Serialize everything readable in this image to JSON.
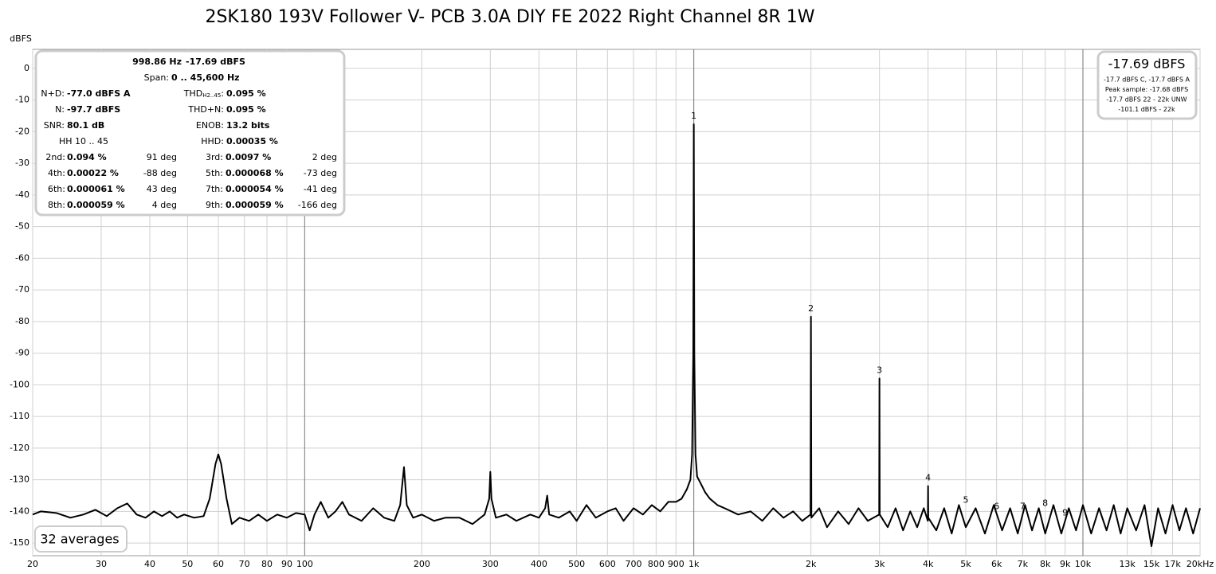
{
  "chart_data": {
    "type": "line",
    "title": "2SK180 193V Follower V- PCB 3.0A DIY FE 2022 Right Channel 8R 1W",
    "y_label": "dBFS",
    "log_x": true,
    "grid": true,
    "color": "#000000",
    "xlim": [
      20,
      20000
    ],
    "ylim": [
      -154,
      6
    ],
    "yticks": [
      0,
      -10,
      -20,
      -30,
      -40,
      -50,
      -60,
      -70,
      -80,
      -90,
      -100,
      -110,
      -120,
      -130,
      -140,
      -150
    ],
    "xticks": [
      20,
      30,
      40,
      50,
      60,
      70,
      80,
      90,
      100,
      200,
      300,
      400,
      500,
      600,
      700,
      800,
      900,
      {
        "value": 1000,
        "label": "1k"
      },
      {
        "value": 2000,
        "label": "2k"
      },
      {
        "value": 3000,
        "label": "3k"
      },
      {
        "value": 4000,
        "label": "4k"
      },
      {
        "value": 5000,
        "label": "5k"
      },
      {
        "value": 6000,
        "label": "6k"
      },
      {
        "value": 7000,
        "label": "7k"
      },
      {
        "value": 8000,
        "label": "8k"
      },
      {
        "value": 9000,
        "label": "9k"
      },
      {
        "value": 10000,
        "label": "10k"
      },
      {
        "value": 13000,
        "label": "13k"
      },
      {
        "value": 15000,
        "label": "15k"
      },
      {
        "value": 17000,
        "label": "17k"
      },
      {
        "value": 20000,
        "label": "20kHz"
      }
    ],
    "x": [
      20,
      21,
      23,
      25,
      27,
      29,
      31,
      33,
      35,
      37,
      39,
      41,
      43,
      45,
      47,
      49,
      52,
      55,
      57,
      59,
      60,
      61,
      63,
      65,
      68,
      72,
      76,
      80,
      85,
      90,
      95,
      100,
      103,
      106,
      110,
      115,
      120,
      125,
      130,
      140,
      150,
      160,
      170,
      176,
      180,
      183,
      190,
      200,
      215,
      230,
      250,
      270,
      290,
      298,
      300,
      302,
      310,
      330,
      350,
      380,
      400,
      415,
      420,
      425,
      450,
      480,
      500,
      530,
      560,
      600,
      630,
      660,
      700,
      740,
      780,
      820,
      860,
      900,
      930,
      960,
      980,
      990,
      997,
      1000,
      1003,
      1010,
      1020,
      1040,
      1070,
      1100,
      1150,
      1200,
      1300,
      1400,
      1500,
      1600,
      1700,
      1800,
      1900,
      1995,
      2000,
      2005,
      2100,
      2200,
      2350,
      2500,
      2650,
      2800,
      2995,
      3000,
      3005,
      3150,
      3300,
      3450,
      3600,
      3750,
      3900,
      3995,
      4000,
      4005,
      4200,
      4400,
      4600,
      4800,
      5000,
      5300,
      5600,
      5900,
      6200,
      6500,
      6800,
      7100,
      7400,
      7700,
      8000,
      8400,
      8800,
      9200,
      9600,
      10000,
      10500,
      11000,
      11500,
      12000,
      12500,
      13000,
      13700,
      14400,
      15000,
      15600,
      16300,
      17000,
      17700,
      18400,
      19200,
      20000
    ],
    "values": [
      -141,
      -140,
      -140.5,
      -142,
      -141,
      -139.5,
      -141.5,
      -139,
      -137.5,
      -141,
      -142,
      -140,
      -141.5,
      -140,
      -142,
      -141,
      -142,
      -141.5,
      -136,
      -125,
      -122,
      -125,
      -136,
      -144,
      -142,
      -143,
      -141,
      -143,
      -141,
      -142,
      -140.5,
      -141,
      -146,
      -141,
      -137,
      -142,
      -140,
      -137,
      -141,
      -143,
      -139,
      -142,
      -143,
      -138,
      -126,
      -138,
      -142,
      -141,
      -143,
      -142,
      -142,
      -144,
      -141,
      -136,
      -127.5,
      -136,
      -142,
      -141,
      -143,
      -141,
      -142,
      -139,
      -135,
      -141,
      -142,
      -140,
      -143,
      -138,
      -142,
      -140,
      -139,
      -143,
      -139,
      -141,
      -138,
      -140,
      -137,
      -137,
      -136,
      -133,
      -130,
      -122,
      -90,
      -17.69,
      -90,
      -122,
      -129,
      -131,
      -134,
      -136,
      -138,
      -139,
      -141,
      -140,
      -143,
      -139,
      -142,
      -140,
      -143,
      -141,
      -78.5,
      -142,
      -139,
      -145,
      -140,
      -144,
      -139,
      -143,
      -141,
      -98,
      -141,
      -145,
      -139,
      -146,
      -140,
      -145,
      -139,
      -143,
      -132,
      -142,
      -146,
      -139,
      -147,
      -138,
      -145,
      -139,
      -147,
      -138,
      -146,
      -139,
      -147,
      -138,
      -146,
      -139,
      -147,
      -138,
      -147,
      -139,
      -146,
      -138,
      -147,
      -139,
      -146,
      -138,
      -147,
      -139,
      -146,
      -138,
      -151,
      -139,
      -147,
      -138,
      -146,
      -139,
      -147,
      -139
    ],
    "markers": [
      {
        "label": "1",
        "x": 1000,
        "y": -17.69
      },
      {
        "label": "2",
        "x": 2000,
        "y": -78.5
      },
      {
        "label": "3",
        "x": 3000,
        "y": -98
      },
      {
        "label": "4",
        "x": 4000,
        "y": -132
      },
      {
        "label": "5",
        "x": 5000,
        "y": -139
      },
      {
        "label": "6",
        "x": 6000,
        "y": -141
      },
      {
        "label": "7",
        "x": 7000,
        "y": -141
      },
      {
        "label": "8",
        "x": 8000,
        "y": -140
      },
      {
        "label": "9",
        "x": 9000,
        "y": -143
      }
    ],
    "averages": "32 averages"
  },
  "info": {
    "frequency": "998.86 Hz",
    "level": "-17.69 dBFS",
    "span_label": "Span:",
    "span": "0 .. 45,600 Hz",
    "stats": [
      [
        {
          "label": "N+D:",
          "value": "-77.0 dBFS A"
        },
        {
          "label": "THD",
          "sub": "H2..45",
          "suffix": ":",
          "value": "0.095 %"
        }
      ],
      [
        {
          "label": "N:",
          "value": "-97.7 dBFS"
        },
        {
          "label": "THD+N:",
          "value": "0.095 %"
        }
      ],
      [
        {
          "label": "SNR:",
          "value": "80.1 dB"
        },
        {
          "label": "ENOB:",
          "value": "13.2 bits"
        }
      ],
      [
        {
          "label": "HH 10 .. 45"
        },
        {
          "label": "HHD:",
          "value": "0.00035 %"
        }
      ]
    ],
    "harmonics": [
      {
        "label": "2nd:",
        "value": "0.094 %",
        "phase": "91 deg"
      },
      {
        "label": "3rd:",
        "value": "0.0097 %",
        "phase": "2 deg"
      },
      {
        "label": "4th:",
        "value": "0.00022 %",
        "phase": "-88 deg"
      },
      {
        "label": "5th:",
        "value": "0.000068 %",
        "phase": "-73 deg"
      },
      {
        "label": "6th:",
        "value": "0.000061 %",
        "phase": "43 deg"
      },
      {
        "label": "7th:",
        "value": "0.000054 %",
        "phase": "-41 deg"
      },
      {
        "label": "8th:",
        "value": "0.000059 %",
        "phase": "4 deg"
      },
      {
        "label": "9th:",
        "value": "0.000059 %",
        "phase": "-166 deg"
      }
    ]
  },
  "level_box": {
    "level": "-17.69 dBFS",
    "lines": [
      "-17.7 dBFS C, -17.7 dBFS A",
      "Peak sample: -17.68 dBFS",
      "-17.7 dBFS 22 - 22k UNW",
      "-101.1 dBFS - 22k"
    ]
  }
}
